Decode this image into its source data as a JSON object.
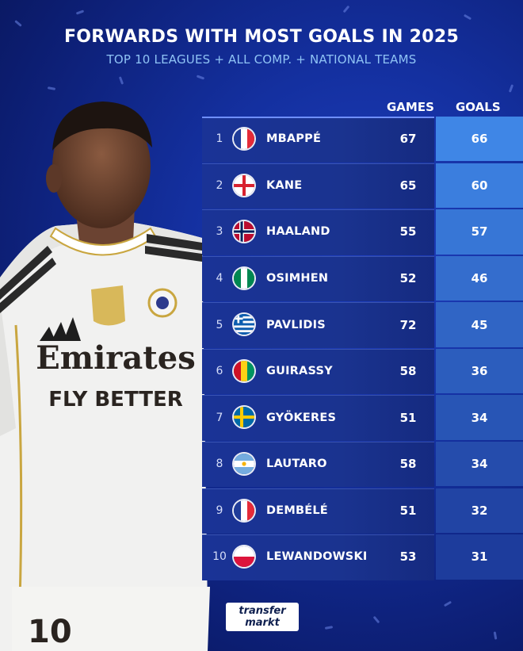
{
  "title": "FORWARDS WITH MOST GOALS IN 2025",
  "subtitle": "TOP 10 LEAGUES + ALL COMP. + NATIONAL TEAMS",
  "columns": {
    "games": "GAMES",
    "goals": "GOALS"
  },
  "player_shirt": {
    "sponsor_line1": "Emirates",
    "sponsor_line2": "FLY BETTER",
    "number": "10"
  },
  "logo": {
    "line1": "transfer",
    "line2": "markt"
  },
  "rows": [
    {
      "rank": "1",
      "name": "MBAPPÉ",
      "games": "67",
      "goals": "66",
      "flag": "france"
    },
    {
      "rank": "2",
      "name": "KANE",
      "games": "65",
      "goals": "60",
      "flag": "england"
    },
    {
      "rank": "3",
      "name": "HAALAND",
      "games": "55",
      "goals": "57",
      "flag": "norway"
    },
    {
      "rank": "4",
      "name": "OSIMHEN",
      "games": "52",
      "goals": "46",
      "flag": "nigeria"
    },
    {
      "rank": "5",
      "name": "PAVLIDIS",
      "games": "72",
      "goals": "45",
      "flag": "greece"
    },
    {
      "rank": "6",
      "name": "GUIRASSY",
      "games": "58",
      "goals": "36",
      "flag": "guinea"
    },
    {
      "rank": "7",
      "name": "GYÖKERES",
      "games": "51",
      "goals": "34",
      "flag": "sweden"
    },
    {
      "rank": "8",
      "name": "LAUTARO",
      "games": "58",
      "goals": "34",
      "flag": "argentina"
    },
    {
      "rank": "9",
      "name": "DEMBÉLÉ",
      "games": "51",
      "goals": "32",
      "flag": "france"
    },
    {
      "rank": "10",
      "name": "LEWANDOWSKI",
      "games": "53",
      "goals": "31",
      "flag": "poland"
    }
  ],
  "colors": {
    "goal_cell_top": "#3f86e6",
    "goal_cell_bottom": "#1d3c9c",
    "row_bg": "#1a338f",
    "subtitle": "#8fc3f5"
  }
}
